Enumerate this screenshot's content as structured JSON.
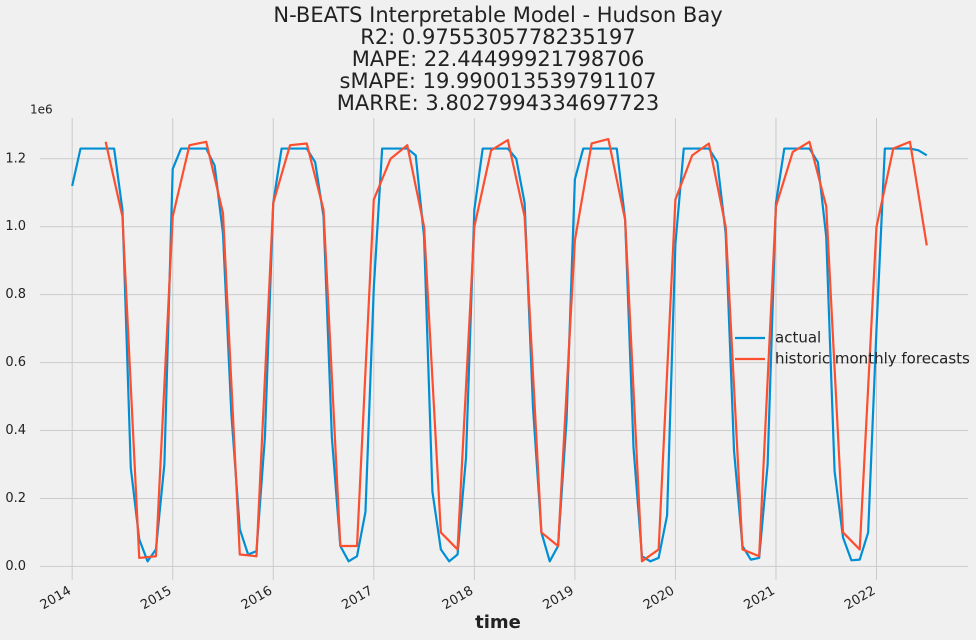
{
  "chart_data": {
    "type": "line",
    "title": [
      "N-BEATS Interpretable Model - Hudson Bay",
      "R2: 0.9755305778235197",
      "MAPE: 22.44499921798706",
      "sMAPE: 19.990013539791107",
      "MARRE: 3.8027994334697723"
    ],
    "x_label": "time",
    "y_offset_label": "1e6",
    "xlim": [
      2013.68,
      2022.91
    ],
    "xticks": [
      2014,
      2015,
      2016,
      2017,
      2018,
      2019,
      2020,
      2021,
      2022
    ],
    "ylim": [
      -0.04,
      1.32
    ],
    "yticks": [
      {
        "value": 0,
        "label": "0.0"
      },
      0.2,
      0.4,
      0.6,
      0.8,
      {
        "value": 1,
        "label": "1.0"
      },
      1.2
    ],
    "grid": true,
    "legend": "center right",
    "series": [
      {
        "name": "actual",
        "color": "#008fd5",
        "x": [
          2014.0,
          2014.083,
          2014.167,
          2014.25,
          2014.333,
          2014.417,
          2014.5,
          2014.583,
          2014.667,
          2014.75,
          2014.833,
          2014.917,
          2015.0,
          2015.083,
          2015.167,
          2015.25,
          2015.333,
          2015.417,
          2015.5,
          2015.583,
          2015.667,
          2015.75,
          2015.833,
          2015.917,
          2016.0,
          2016.083,
          2016.167,
          2016.25,
          2016.333,
          2016.417,
          2016.5,
          2016.583,
          2016.667,
          2016.75,
          2016.833,
          2016.917,
          2017.0,
          2017.083,
          2017.167,
          2017.25,
          2017.333,
          2017.417,
          2017.5,
          2017.583,
          2017.667,
          2017.75,
          2017.833,
          2017.917,
          2018.0,
          2018.083,
          2018.167,
          2018.25,
          2018.333,
          2018.417,
          2018.5,
          2018.583,
          2018.667,
          2018.75,
          2018.833,
          2018.917,
          2019.0,
          2019.083,
          2019.167,
          2019.25,
          2019.333,
          2019.417,
          2019.5,
          2019.583,
          2019.667,
          2019.75,
          2019.833,
          2019.917,
          2020.0,
          2020.083,
          2020.167,
          2020.25,
          2020.333,
          2020.417,
          2020.5,
          2020.583,
          2020.667,
          2020.75,
          2020.833,
          2020.917,
          2021.0,
          2021.083,
          2021.167,
          2021.25,
          2021.333,
          2021.417,
          2021.5,
          2021.583,
          2021.667,
          2021.75,
          2021.833,
          2021.917,
          2022.0,
          2022.083,
          2022.167,
          2022.25,
          2022.333,
          2022.417,
          2022.5
        ],
        "values": [
          1.12,
          1.23,
          1.23,
          1.23,
          1.23,
          1.23,
          1.05,
          0.29,
          0.08,
          0.015,
          0.05,
          0.3,
          1.17,
          1.23,
          1.23,
          1.23,
          1.23,
          1.18,
          0.98,
          0.45,
          0.11,
          0.035,
          0.045,
          0.38,
          1.07,
          1.23,
          1.23,
          1.23,
          1.23,
          1.19,
          1.03,
          0.38,
          0.06,
          0.015,
          0.03,
          0.16,
          0.82,
          1.23,
          1.23,
          1.23,
          1.23,
          1.21,
          0.97,
          0.22,
          0.05,
          0.015,
          0.035,
          0.32,
          1.05,
          1.23,
          1.23,
          1.23,
          1.23,
          1.2,
          1.07,
          0.47,
          0.1,
          0.015,
          0.06,
          0.43,
          1.14,
          1.23,
          1.23,
          1.23,
          1.23,
          1.23,
          1.02,
          0.35,
          0.03,
          0.015,
          0.025,
          0.15,
          0.95,
          1.23,
          1.23,
          1.23,
          1.23,
          1.19,
          0.98,
          0.34,
          0.06,
          0.02,
          0.025,
          0.3,
          1.07,
          1.23,
          1.23,
          1.23,
          1.23,
          1.19,
          0.97,
          0.28,
          0.085,
          0.018,
          0.02,
          0.1,
          0.7,
          1.23,
          1.23,
          1.23,
          1.23,
          1.225,
          1.21
        ]
      },
      {
        "name": "historic monthly forecasts",
        "color": "#fc4f30",
        "x": [
          2014.333,
          2014.5,
          2014.667,
          2014.833,
          2015.0,
          2015.167,
          2015.333,
          2015.5,
          2015.667,
          2015.833,
          2016.0,
          2016.167,
          2016.333,
          2016.5,
          2016.667,
          2016.833,
          2017.0,
          2017.167,
          2017.333,
          2017.5,
          2017.667,
          2017.833,
          2018.0,
          2018.167,
          2018.333,
          2018.5,
          2018.667,
          2018.833,
          2019.0,
          2019.167,
          2019.333,
          2019.5,
          2019.667,
          2019.833,
          2020.0,
          2020.167,
          2020.333,
          2020.5,
          2020.667,
          2020.833,
          2021.0,
          2021.167,
          2021.333,
          2021.5,
          2021.667,
          2021.833,
          2022.0,
          2022.167,
          2022.333,
          2022.5
        ],
        "values": [
          1.25,
          1.03,
          0.025,
          0.03,
          1.03,
          1.24,
          1.25,
          1.04,
          0.035,
          0.03,
          1.07,
          1.24,
          1.245,
          1.05,
          0.06,
          0.06,
          1.08,
          1.2,
          1.24,
          1.0,
          0.1,
          0.05,
          1.0,
          1.225,
          1.255,
          1.03,
          0.1,
          0.06,
          0.96,
          1.245,
          1.258,
          1.02,
          0.015,
          0.05,
          1.08,
          1.21,
          1.245,
          1.0,
          0.05,
          0.03,
          1.06,
          1.22,
          1.25,
          1.06,
          0.1,
          0.05,
          1.0,
          1.23,
          1.25,
          0.945
        ]
      }
    ]
  }
}
